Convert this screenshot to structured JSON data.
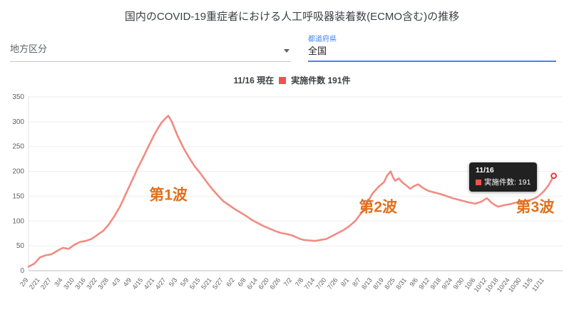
{
  "title": "国内のCOVID-19重症者における人工呼吸器装着数(ECMO含む)の推移",
  "controls": {
    "region_label": "地方区分",
    "prefecture_label": "都道府県",
    "prefecture_value": "全国"
  },
  "legend": {
    "as_of": "11/16 現在",
    "series_label": "実施件数 191件"
  },
  "tooltip": {
    "date": "11/16",
    "label": "実施件数: 191"
  },
  "colors": {
    "line": "#f28b82",
    "legend_square": "#ef5350",
    "annotation": "#e0701e",
    "accent_blue": "#4285f4",
    "tooltip_bg": "#212121"
  },
  "chart_data": {
    "type": "line",
    "title": "国内のCOVID-19重症者における人工呼吸器装着数(ECMO含む)の推移",
    "xlabel": "",
    "ylabel": "",
    "ylim": [
      0,
      350
    ],
    "y_ticks": [
      0,
      50,
      100,
      150,
      200,
      250,
      300,
      350
    ],
    "grid": "horizontal",
    "legend_position": "top",
    "x_tick_labels": [
      "2/9",
      "2/21",
      "2/27",
      "3/4",
      "3/10",
      "3/16",
      "3/22",
      "3/28",
      "4/3",
      "4/9",
      "4/15",
      "4/21",
      "4/27",
      "5/3",
      "5/9",
      "5/15",
      "5/21",
      "5/27",
      "6/2",
      "6/8",
      "6/14",
      "6/20",
      "6/26",
      "7/2",
      "7/8",
      "7/14",
      "7/20",
      "7/26",
      "8/1",
      "8/7",
      "8/13",
      "8/19",
      "8/25",
      "8/31",
      "9/6",
      "9/12",
      "9/18",
      "9/24",
      "9/30",
      "10/6",
      "10/12",
      "10/18",
      "10/24",
      "10/30",
      "11/5",
      "11/11"
    ],
    "series": [
      {
        "name": "実施件数",
        "points": [
          [
            0,
            8
          ],
          [
            0.5,
            14
          ],
          [
            1,
            27
          ],
          [
            1.5,
            31
          ],
          [
            2,
            33
          ],
          [
            2.5,
            40
          ],
          [
            3,
            46
          ],
          [
            3.5,
            44
          ],
          [
            4,
            52
          ],
          [
            4.5,
            58
          ],
          [
            5,
            60
          ],
          [
            5.5,
            64
          ],
          [
            6,
            72
          ],
          [
            6.5,
            80
          ],
          [
            7,
            93
          ],
          [
            7.5,
            110
          ],
          [
            8,
            130
          ],
          [
            8.5,
            155
          ],
          [
            9,
            180
          ],
          [
            9.5,
            205
          ],
          [
            10,
            228
          ],
          [
            10.5,
            252
          ],
          [
            11,
            275
          ],
          [
            11.3,
            287
          ],
          [
            11.6,
            298
          ],
          [
            12,
            308
          ],
          [
            12.2,
            312
          ],
          [
            12.5,
            300
          ],
          [
            13,
            272
          ],
          [
            13.5,
            248
          ],
          [
            14,
            228
          ],
          [
            14.5,
            210
          ],
          [
            15,
            196
          ],
          [
            15.5,
            180
          ],
          [
            16,
            165
          ],
          [
            16.5,
            152
          ],
          [
            17,
            140
          ],
          [
            17.5,
            132
          ],
          [
            18,
            124
          ],
          [
            18.5,
            117
          ],
          [
            19,
            110
          ],
          [
            19.5,
            102
          ],
          [
            20,
            96
          ],
          [
            20.5,
            90
          ],
          [
            21,
            85
          ],
          [
            21.5,
            80
          ],
          [
            22,
            76
          ],
          [
            22.5,
            74
          ],
          [
            23,
            71
          ],
          [
            23.4,
            67
          ],
          [
            23.7,
            64
          ],
          [
            24,
            62
          ],
          [
            24.5,
            61
          ],
          [
            25,
            60
          ],
          [
            25.5,
            62
          ],
          [
            26,
            64
          ],
          [
            26.5,
            70
          ],
          [
            27,
            76
          ],
          [
            27.5,
            82
          ],
          [
            28,
            90
          ],
          [
            28.5,
            100
          ],
          [
            29,
            115
          ],
          [
            29.5,
            135
          ],
          [
            30,
            155
          ],
          [
            30.5,
            168
          ],
          [
            31,
            178
          ],
          [
            31.3,
            192
          ],
          [
            31.6,
            200
          ],
          [
            31.8,
            188
          ],
          [
            32,
            181
          ],
          [
            32.3,
            186
          ],
          [
            32.6,
            178
          ],
          [
            33,
            171
          ],
          [
            33.3,
            165
          ],
          [
            33.6,
            170
          ],
          [
            34,
            174
          ],
          [
            34.4,
            167
          ],
          [
            34.7,
            163
          ],
          [
            35,
            160
          ],
          [
            35.5,
            157
          ],
          [
            36,
            154
          ],
          [
            36.5,
            150
          ],
          [
            37,
            146
          ],
          [
            37.5,
            143
          ],
          [
            38,
            140
          ],
          [
            38.5,
            137
          ],
          [
            39,
            135
          ],
          [
            39.5,
            139
          ],
          [
            40,
            146
          ],
          [
            40.4,
            137
          ],
          [
            40.7,
            132
          ],
          [
            41,
            129
          ],
          [
            41.5,
            132
          ],
          [
            42,
            134
          ],
          [
            42.5,
            137
          ],
          [
            43,
            139
          ],
          [
            43.5,
            141
          ],
          [
            44,
            144
          ],
          [
            44.3,
            147
          ],
          [
            44.6,
            152
          ],
          [
            45,
            161
          ],
          [
            45.4,
            173
          ],
          [
            45.83,
            191
          ]
        ]
      }
    ],
    "end_point": {
      "x": 45.83,
      "value": 191,
      "label": "11/16"
    },
    "annotations": [
      {
        "text": "第1波",
        "x": 12.2,
        "value": 143
      },
      {
        "text": "第2波",
        "x": 30.5,
        "value": 118
      },
      {
        "text": "第3波",
        "x": 44.2,
        "value": 118
      }
    ]
  }
}
